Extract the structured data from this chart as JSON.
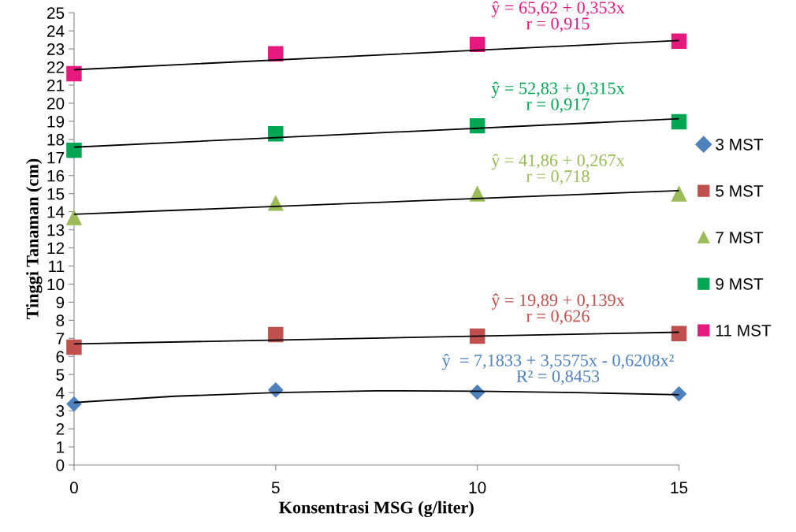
{
  "chart_data": {
    "type": "scatter",
    "xlabel": "Konsentrasi MSG (g/liter)",
    "ylabel": "Tinggi Tanaman (cm)",
    "x": [
      0,
      5,
      10,
      15
    ],
    "xlim": [
      0,
      15
    ],
    "xticks": [
      0,
      5,
      10,
      15
    ],
    "ylim": [
      0,
      25
    ],
    "yticks": [
      0,
      1,
      2,
      3,
      4,
      5,
      6,
      7,
      8,
      9,
      10,
      11,
      12,
      13,
      14,
      15,
      16,
      17,
      18,
      19,
      20,
      21,
      22,
      23,
      24,
      25
    ],
    "grid": false,
    "legend": "right",
    "series": [
      {
        "name": "3 MST",
        "color": "#4f81bd",
        "marker": "diamond",
        "values": [
          3.37,
          4.15,
          4.02,
          3.93
        ]
      },
      {
        "name": "5 MST",
        "color": "#c0504d",
        "marker": "square",
        "values": [
          6.51,
          7.21,
          7.12,
          7.26
        ]
      },
      {
        "name": "7 MST",
        "color": "#9bbb59",
        "marker": "triangle",
        "values": [
          13.68,
          14.47,
          14.99,
          14.99
        ]
      },
      {
        "name": "9 MST",
        "color": "#00a651",
        "marker": "square",
        "values": [
          17.4,
          18.31,
          18.75,
          18.97
        ]
      },
      {
        "name": "11 MST",
        "color": "#e6197e",
        "marker": "square",
        "values": [
          21.63,
          22.73,
          23.25,
          23.43
        ]
      },
      {
        "type": "line",
        "color": "#000000",
        "x": [
          0,
          2.5,
          5,
          7.5,
          10,
          12.5,
          15
        ],
        "values": [
          3.45,
          3.8,
          4.0,
          4.1,
          4.08,
          4.0,
          3.88
        ]
      },
      {
        "type": "line",
        "color": "#000000",
        "x": [
          0,
          15
        ],
        "values": [
          6.69,
          7.34
        ]
      },
      {
        "type": "line",
        "color": "#000000",
        "x": [
          0,
          15
        ],
        "values": [
          13.86,
          15.17
        ]
      },
      {
        "type": "line",
        "color": "#000000",
        "x": [
          0,
          15
        ],
        "values": [
          17.57,
          19.14
        ]
      },
      {
        "type": "line",
        "color": "#000000",
        "x": [
          0,
          15
        ],
        "values": [
          21.85,
          23.47
        ]
      }
    ],
    "annotations": [
      "ŷ  = 7,1833 + 3,5575x - 0,6208x²\nR² = 0,8453",
      "ŷ = 19,89 + 0,139x\nr = 0,626",
      "ŷ = 41,86 + 0,267x\nr = 0,718",
      "ŷ = 52,83 + 0,315x\nr = 0,917",
      "ŷ = 65,62 + 0,353x\nr = 0,915"
    ]
  }
}
